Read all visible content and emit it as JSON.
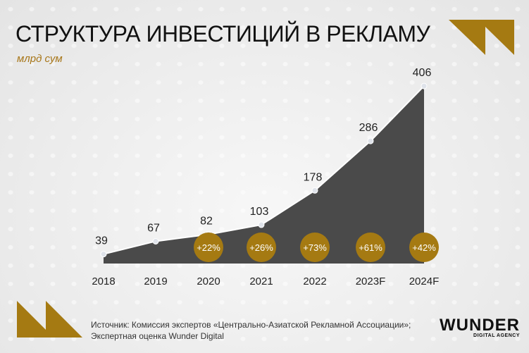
{
  "title": "СТРУКТУРА ИНВЕСТИЦИЙ В РЕКЛАМУ",
  "unit": "млрд сум",
  "source_line1": "Источник: Комиссия экспертов «Центрально-Азиатской Рекламной Ассоциации»;",
  "source_line2": "Экспертная оценка Wunder Digital",
  "logo": {
    "name": "WUNDER",
    "tagline": "DIGITAL AGENCY"
  },
  "colors": {
    "accent": "#a57a12",
    "area": "#4a4a4a",
    "line": "#ffffff"
  },
  "chart_data": {
    "type": "area",
    "categories": [
      "2018",
      "2019",
      "2020",
      "2021",
      "2022",
      "2023F",
      "2024F"
    ],
    "values": [
      39,
      67,
      82,
      103,
      178,
      286,
      406
    ],
    "growth_labels": [
      null,
      null,
      "+22%",
      "+26%",
      "+73%",
      "+61%",
      "+42%"
    ],
    "title": "СТРУКТУРА ИНВЕСТИЦИЙ В РЕКЛАМУ",
    "ylabel": "млрд сум",
    "grid": false
  }
}
